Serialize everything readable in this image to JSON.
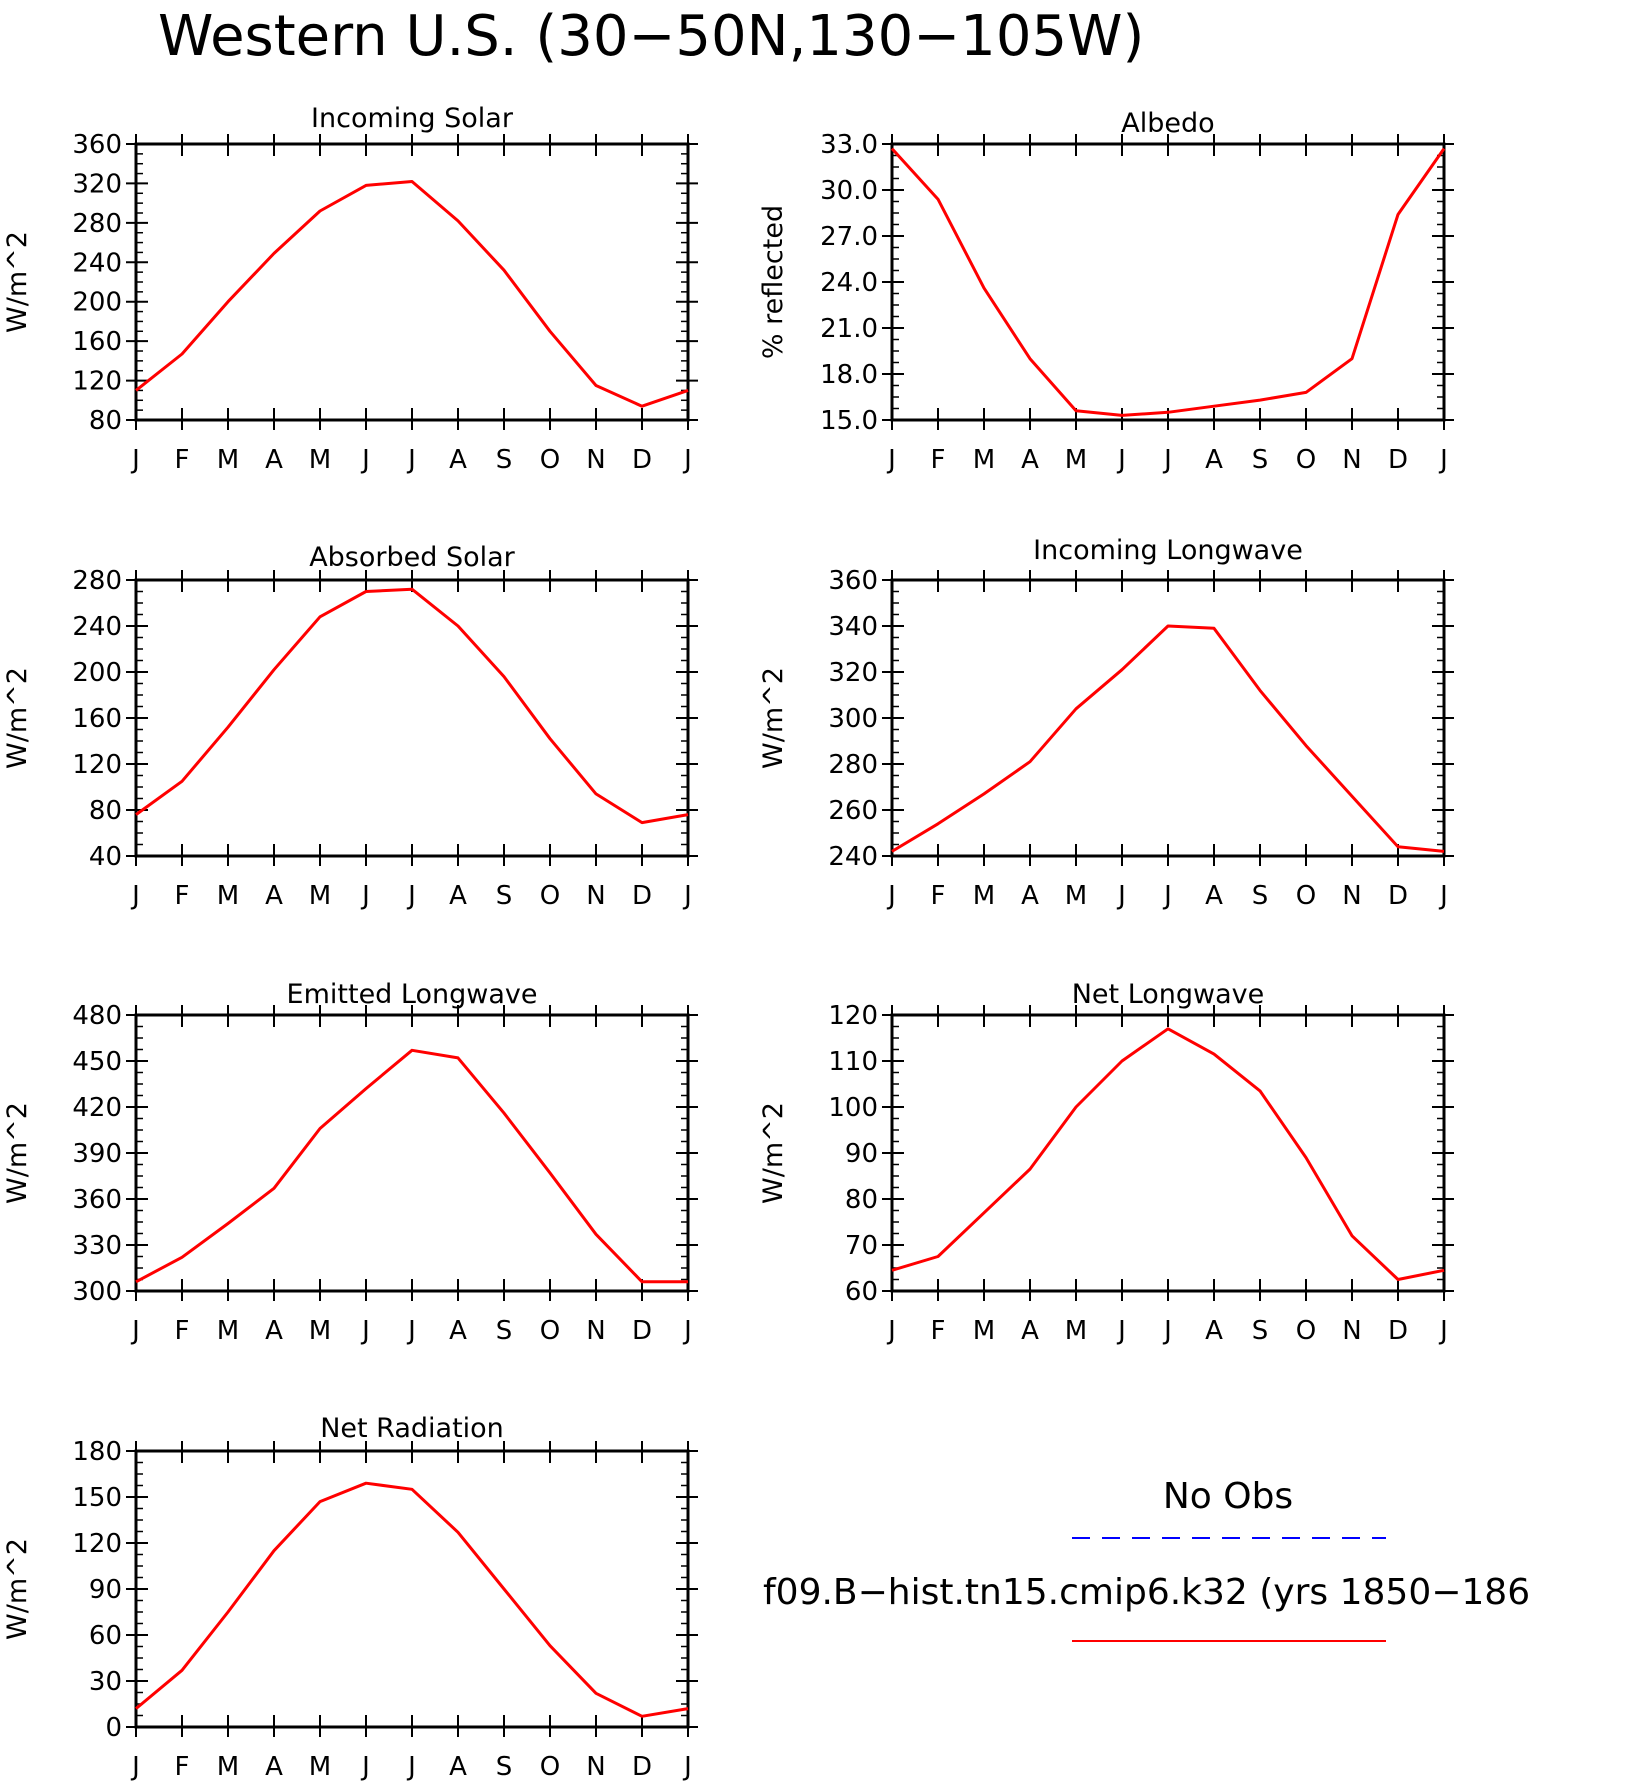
{
  "title": "Western U.S. (30−50N,130−105W)",
  "legend": {
    "obs_label": "No Obs",
    "obs_color": "#0000ff",
    "model_label": "f09.B−hist.tn15.cmip6.k32 (yrs 1850−186",
    "model_color": "#ff0000"
  },
  "chart_data": [
    {
      "type": "line",
      "title": "Incoming Solar",
      "ylabel": "W/m^2",
      "categories": [
        "J",
        "F",
        "M",
        "A",
        "M",
        "J",
        "J",
        "A",
        "S",
        "O",
        "N",
        "D",
        "J"
      ],
      "ylim": [
        80,
        360
      ],
      "yticks": [
        "360",
        "320",
        "280",
        "240",
        "200",
        "160",
        "120",
        "80"
      ],
      "series": [
        {
          "color": "#ff0000",
          "values": [
            110,
            147,
            200,
            249,
            292,
            318,
            322,
            282,
            232,
            170,
            115,
            94,
            110
          ]
        }
      ]
    },
    {
      "type": "line",
      "title": "Albedo",
      "ylabel": "% reflected",
      "categories": [
        "J",
        "F",
        "M",
        "A",
        "M",
        "J",
        "J",
        "A",
        "S",
        "O",
        "N",
        "D",
        "J"
      ],
      "ylim": [
        15,
        33
      ],
      "yticks": [
        "33.0",
        "30.0",
        "27.0",
        "24.0",
        "21.0",
        "18.0",
        "15.0"
      ],
      "series": [
        {
          "color": "#ff0000",
          "values": [
            32.7,
            29.4,
            23.6,
            19.0,
            15.6,
            15.3,
            15.5,
            15.9,
            16.3,
            16.8,
            19.0,
            28.4,
            32.7
          ]
        }
      ]
    },
    {
      "type": "line",
      "title": "Absorbed Solar",
      "ylabel": "W/m^2",
      "categories": [
        "J",
        "F",
        "M",
        "A",
        "M",
        "J",
        "J",
        "A",
        "S",
        "O",
        "N",
        "D",
        "J"
      ],
      "ylim": [
        40,
        280
      ],
      "yticks": [
        "280",
        "240",
        "200",
        "160",
        "120",
        "80",
        "40"
      ],
      "series": [
        {
          "color": "#ff0000",
          "values": [
            76,
            105,
            152,
            202,
            248,
            270,
            272,
            240,
            196,
            142,
            94,
            69,
            76
          ]
        }
      ]
    },
    {
      "type": "line",
      "title": "Incoming Longwave",
      "ylabel": "W/m^2",
      "categories": [
        "J",
        "F",
        "M",
        "A",
        "M",
        "J",
        "J",
        "A",
        "S",
        "O",
        "N",
        "D",
        "J"
      ],
      "ylim": [
        240,
        360
      ],
      "yticks": [
        "360",
        "340",
        "320",
        "300",
        "280",
        "260",
        "240"
      ],
      "series": [
        {
          "color": "#ff0000",
          "values": [
            242,
            254,
            267,
            281,
            304,
            321,
            340,
            339,
            312,
            288,
            266,
            244,
            242
          ]
        }
      ]
    },
    {
      "type": "line",
      "title": "Emitted Longwave",
      "ylabel": "W/m^2",
      "categories": [
        "J",
        "F",
        "M",
        "A",
        "M",
        "J",
        "J",
        "A",
        "S",
        "O",
        "N",
        "D",
        "J"
      ],
      "ylim": [
        300,
        480
      ],
      "yticks": [
        "480",
        "450",
        "420",
        "390",
        "360",
        "330",
        "300"
      ],
      "series": [
        {
          "color": "#ff0000",
          "values": [
            306,
            322,
            344,
            367,
            406,
            432,
            457,
            452,
            416,
            377,
            337,
            306,
            306
          ]
        }
      ]
    },
    {
      "type": "line",
      "title": "Net Longwave",
      "ylabel": "W/m^2",
      "categories": [
        "J",
        "F",
        "M",
        "A",
        "M",
        "J",
        "J",
        "A",
        "S",
        "O",
        "N",
        "D",
        "J"
      ],
      "ylim": [
        60,
        120
      ],
      "yticks": [
        "120",
        "110",
        "100",
        "90",
        "80",
        "70",
        "60"
      ],
      "series": [
        {
          "color": "#ff0000",
          "values": [
            64.5,
            67.5,
            77,
            86.5,
            100,
            110,
            117,
            111.5,
            103.5,
            89,
            72,
            62.5,
            64.5
          ]
        }
      ]
    },
    {
      "type": "line",
      "title": "Net Radiation",
      "ylabel": "W/m^2",
      "categories": [
        "J",
        "F",
        "M",
        "A",
        "M",
        "J",
        "J",
        "A",
        "S",
        "O",
        "N",
        "D",
        "J"
      ],
      "ylim": [
        0,
        180
      ],
      "yticks": [
        "180",
        "150",
        "120",
        "90",
        "60",
        "30",
        "0"
      ],
      "series": [
        {
          "color": "#ff0000",
          "values": [
            12,
            37,
            75,
            115,
            147,
            159,
            155,
            127,
            90,
            53,
            22,
            7,
            12
          ]
        }
      ]
    }
  ]
}
